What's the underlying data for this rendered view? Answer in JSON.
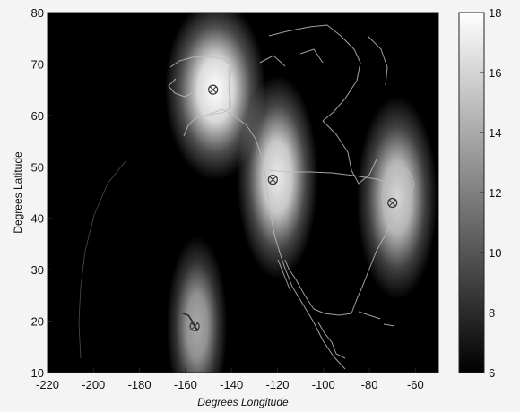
{
  "chart_data": {
    "type": "heatmap",
    "xlabel": "Degrees Longitude",
    "ylabel": "Degrees Latitude",
    "xlim": [
      -220,
      -50
    ],
    "ylim": [
      10,
      80
    ],
    "xticks": [
      -220,
      -200,
      -180,
      -160,
      -140,
      -120,
      -100,
      -80,
      -60
    ],
    "yticks": [
      10,
      20,
      30,
      40,
      50,
      60,
      70,
      80
    ],
    "colorbar": {
      "range": [
        6,
        18
      ],
      "ticks": [
        6,
        8,
        10,
        12,
        14,
        16,
        18
      ],
      "colormap": "grayscale"
    },
    "hotspots": [
      {
        "lon": -147,
        "lat": 65,
        "peak": 18,
        "spread_lon": 10,
        "spread_lat": 8
      },
      {
        "lon": -120,
        "lat": 48,
        "peak": 17,
        "spread_lon": 8,
        "spread_lat": 9
      },
      {
        "lon": -68,
        "lat": 44,
        "peak": 16,
        "spread_lon": 8,
        "spread_lat": 9
      },
      {
        "lon": -155,
        "lat": 19,
        "peak": 14,
        "spread_lon": 6,
        "spread_lat": 8
      }
    ],
    "station_markers": [
      {
        "lon": -148,
        "lat": 65
      },
      {
        "lon": -122,
        "lat": 47.5
      },
      {
        "lon": -70,
        "lat": 43
      },
      {
        "lon": -156,
        "lat": 19
      }
    ],
    "background_level": 6,
    "grid": false,
    "colors": {
      "low": "#000000",
      "high": "#ffffff",
      "coastline": "#bdbdbd"
    }
  }
}
